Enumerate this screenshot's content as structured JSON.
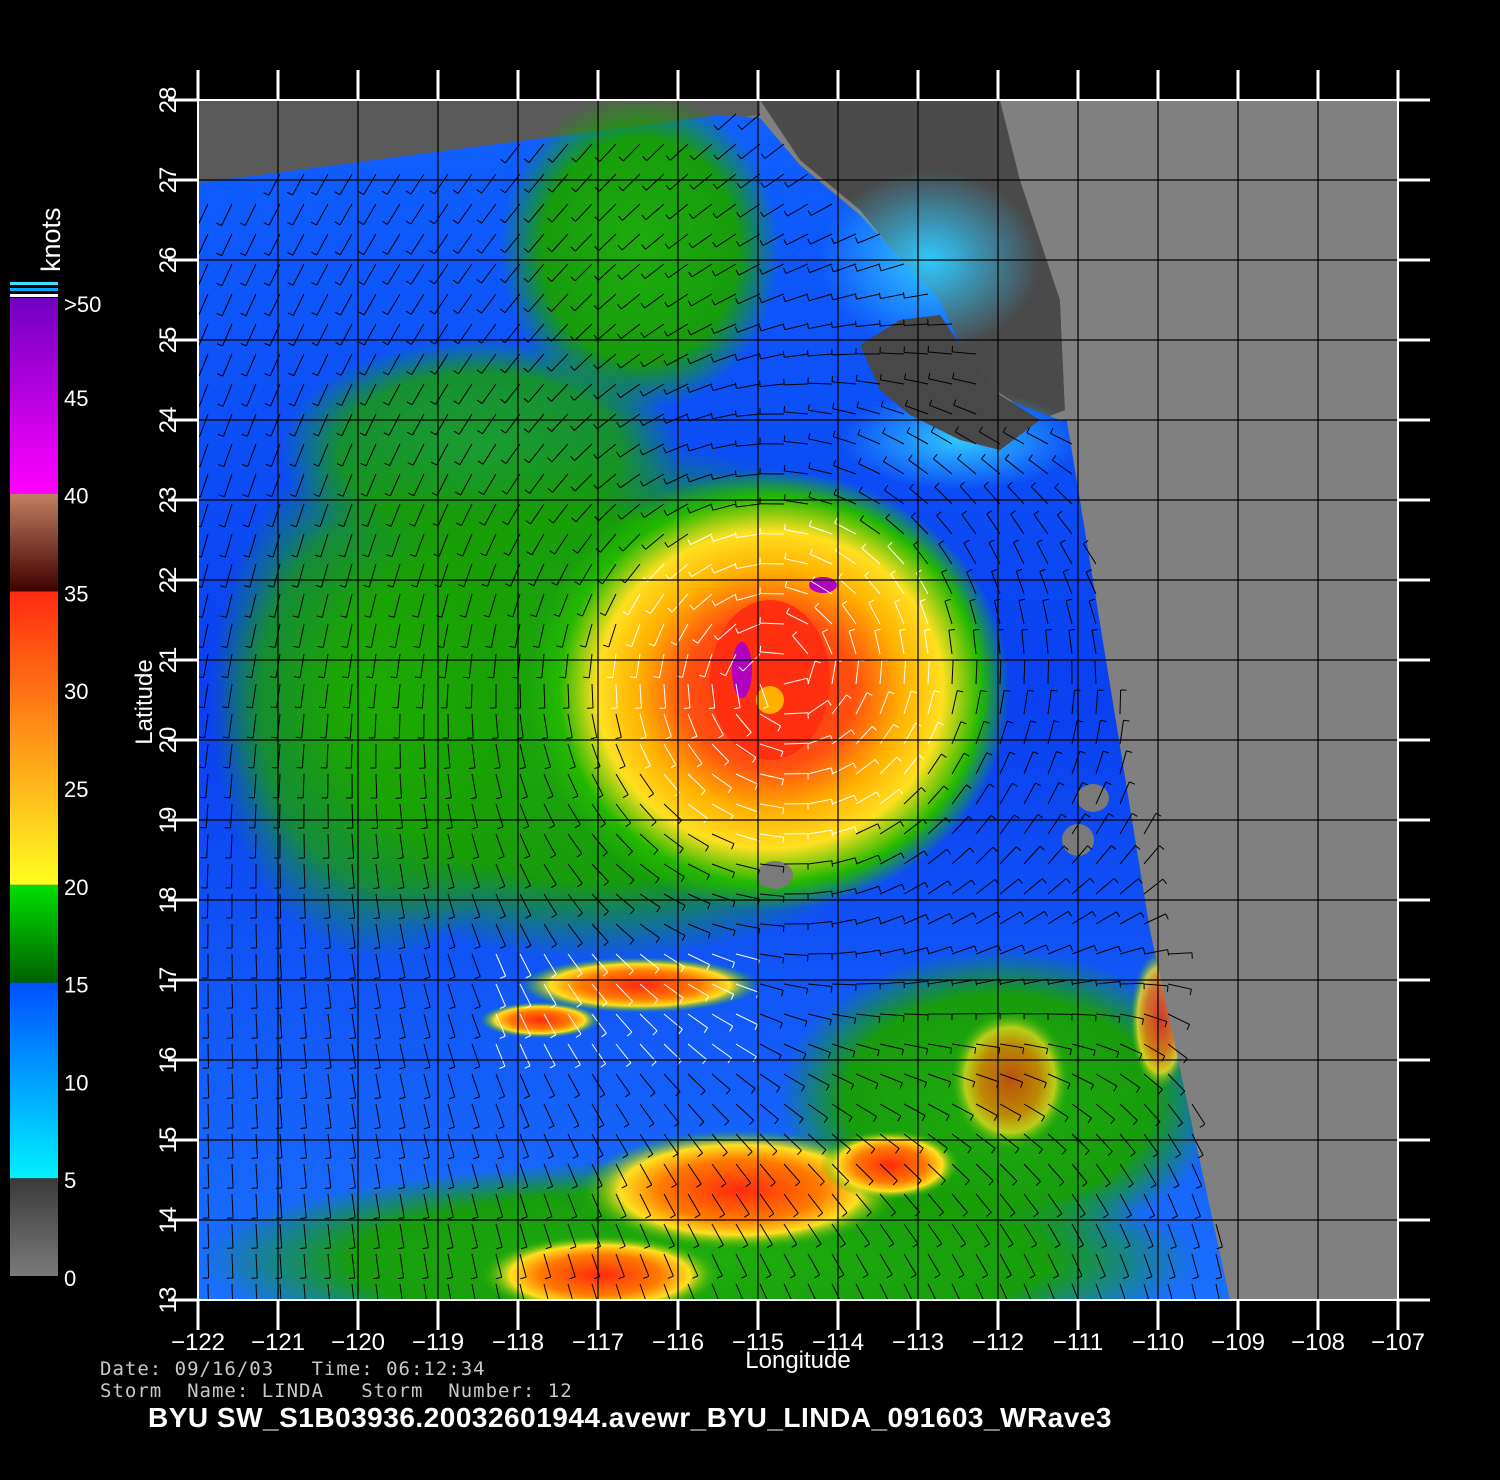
{
  "plot": {
    "xlabel": "Longitude",
    "ylabel": "Latitude",
    "x_ticks": [
      "−122",
      "−121",
      "−120",
      "−119",
      "−118",
      "−117",
      "−116",
      "−115",
      "−114",
      "−113",
      "−112",
      "−111",
      "−110",
      "−109",
      "−108",
      "−107"
    ],
    "y_ticks": [
      "13",
      "14",
      "15",
      "16",
      "17",
      "18",
      "19",
      "20",
      "21",
      "22",
      "23",
      "24",
      "25",
      "26",
      "27",
      "28"
    ],
    "lon_range": [
      -122,
      -107
    ],
    "lat_range": [
      13,
      28
    ],
    "grid": true
  },
  "colorbar": {
    "unit_label": "knots",
    "labels": [
      ">50",
      "45",
      "40",
      "35",
      "30",
      "25",
      "20",
      "15",
      "10",
      "5",
      "0"
    ],
    "segments": [
      {
        "from": 0,
        "to": 5,
        "color_top": "#3a3a3a",
        "color_bottom": "#7a7a7a"
      },
      {
        "from": 5,
        "to": 15,
        "color_top": "#0050ff",
        "color_bottom": "#00f0ff"
      },
      {
        "from": 15,
        "to": 20,
        "color_top": "#00e000",
        "color_bottom": "#006000"
      },
      {
        "from": 20,
        "to": 35,
        "color_top": "#ff2a10",
        "color_bottom": "#ffff20"
      },
      {
        "from": 35,
        "to": 40,
        "color_top": "#c08060",
        "color_bottom": "#400000"
      },
      {
        "from": 40,
        "to": 50,
        "color_top": "#7000c0",
        "color_bottom": "#ff00ff"
      }
    ]
  },
  "storm_center": {
    "lon": -114.7,
    "lat": 20.8
  },
  "colors": {
    "land": "#808080",
    "no_data": "#5a5a5a",
    "ocean_low": "#0a3cff",
    "ocean_mid": "#2a8cff",
    "green": "#1fb000",
    "yellow": "#ffe020",
    "orange": "#ff8a00",
    "red": "#ff2a10",
    "purple": "#b000c0"
  },
  "meta": {
    "date_line": "Date: 09/16/03   Time: 06:12:34",
    "storm_line": "Storm  Name: LINDA   Storm  Number: 12",
    "footer": "BYU  SW_S1B03936.20032601944.avewr_BYU_LINDA_091603_WRave3"
  }
}
